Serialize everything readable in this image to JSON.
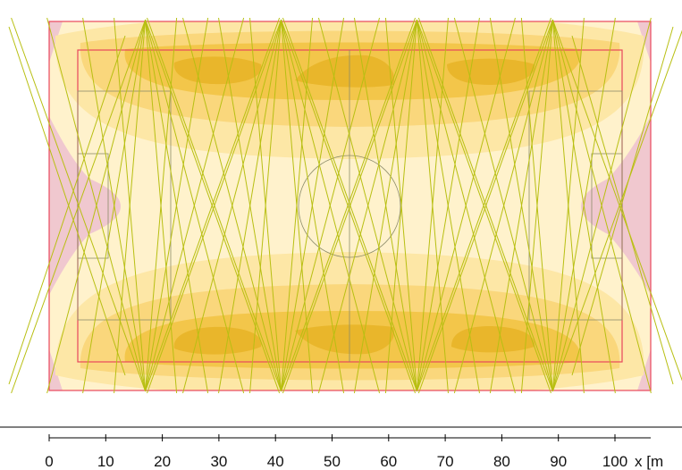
{
  "diagram": {
    "kind": "stadium-illuminance-isoline-plot",
    "field": {
      "length_m": 105,
      "width_m": 68
    },
    "colors": {
      "background": "#ffffff",
      "outer_zone": "#f0c8cf",
      "level_1": "#fff2cc",
      "level_2": "#fde7a6",
      "level_3": "#fad77c",
      "level_4": "#f3c64a",
      "level_5": "#e9b62b",
      "field_outline": "#e8475c",
      "field_markings": "#8c8c6a",
      "beam_lines": "#b8bf12",
      "axis": "#000000"
    },
    "light_poles_x_m": [
      17,
      41,
      65,
      89
    ]
  },
  "axis": {
    "ticks": [
      "0",
      "10",
      "20",
      "30",
      "40",
      "50",
      "60",
      "70",
      "80",
      "90",
      "100"
    ],
    "tick_values": [
      0,
      10,
      20,
      30,
      40,
      50,
      60,
      70,
      80,
      90,
      100
    ],
    "unit_label": "x [m"
  }
}
